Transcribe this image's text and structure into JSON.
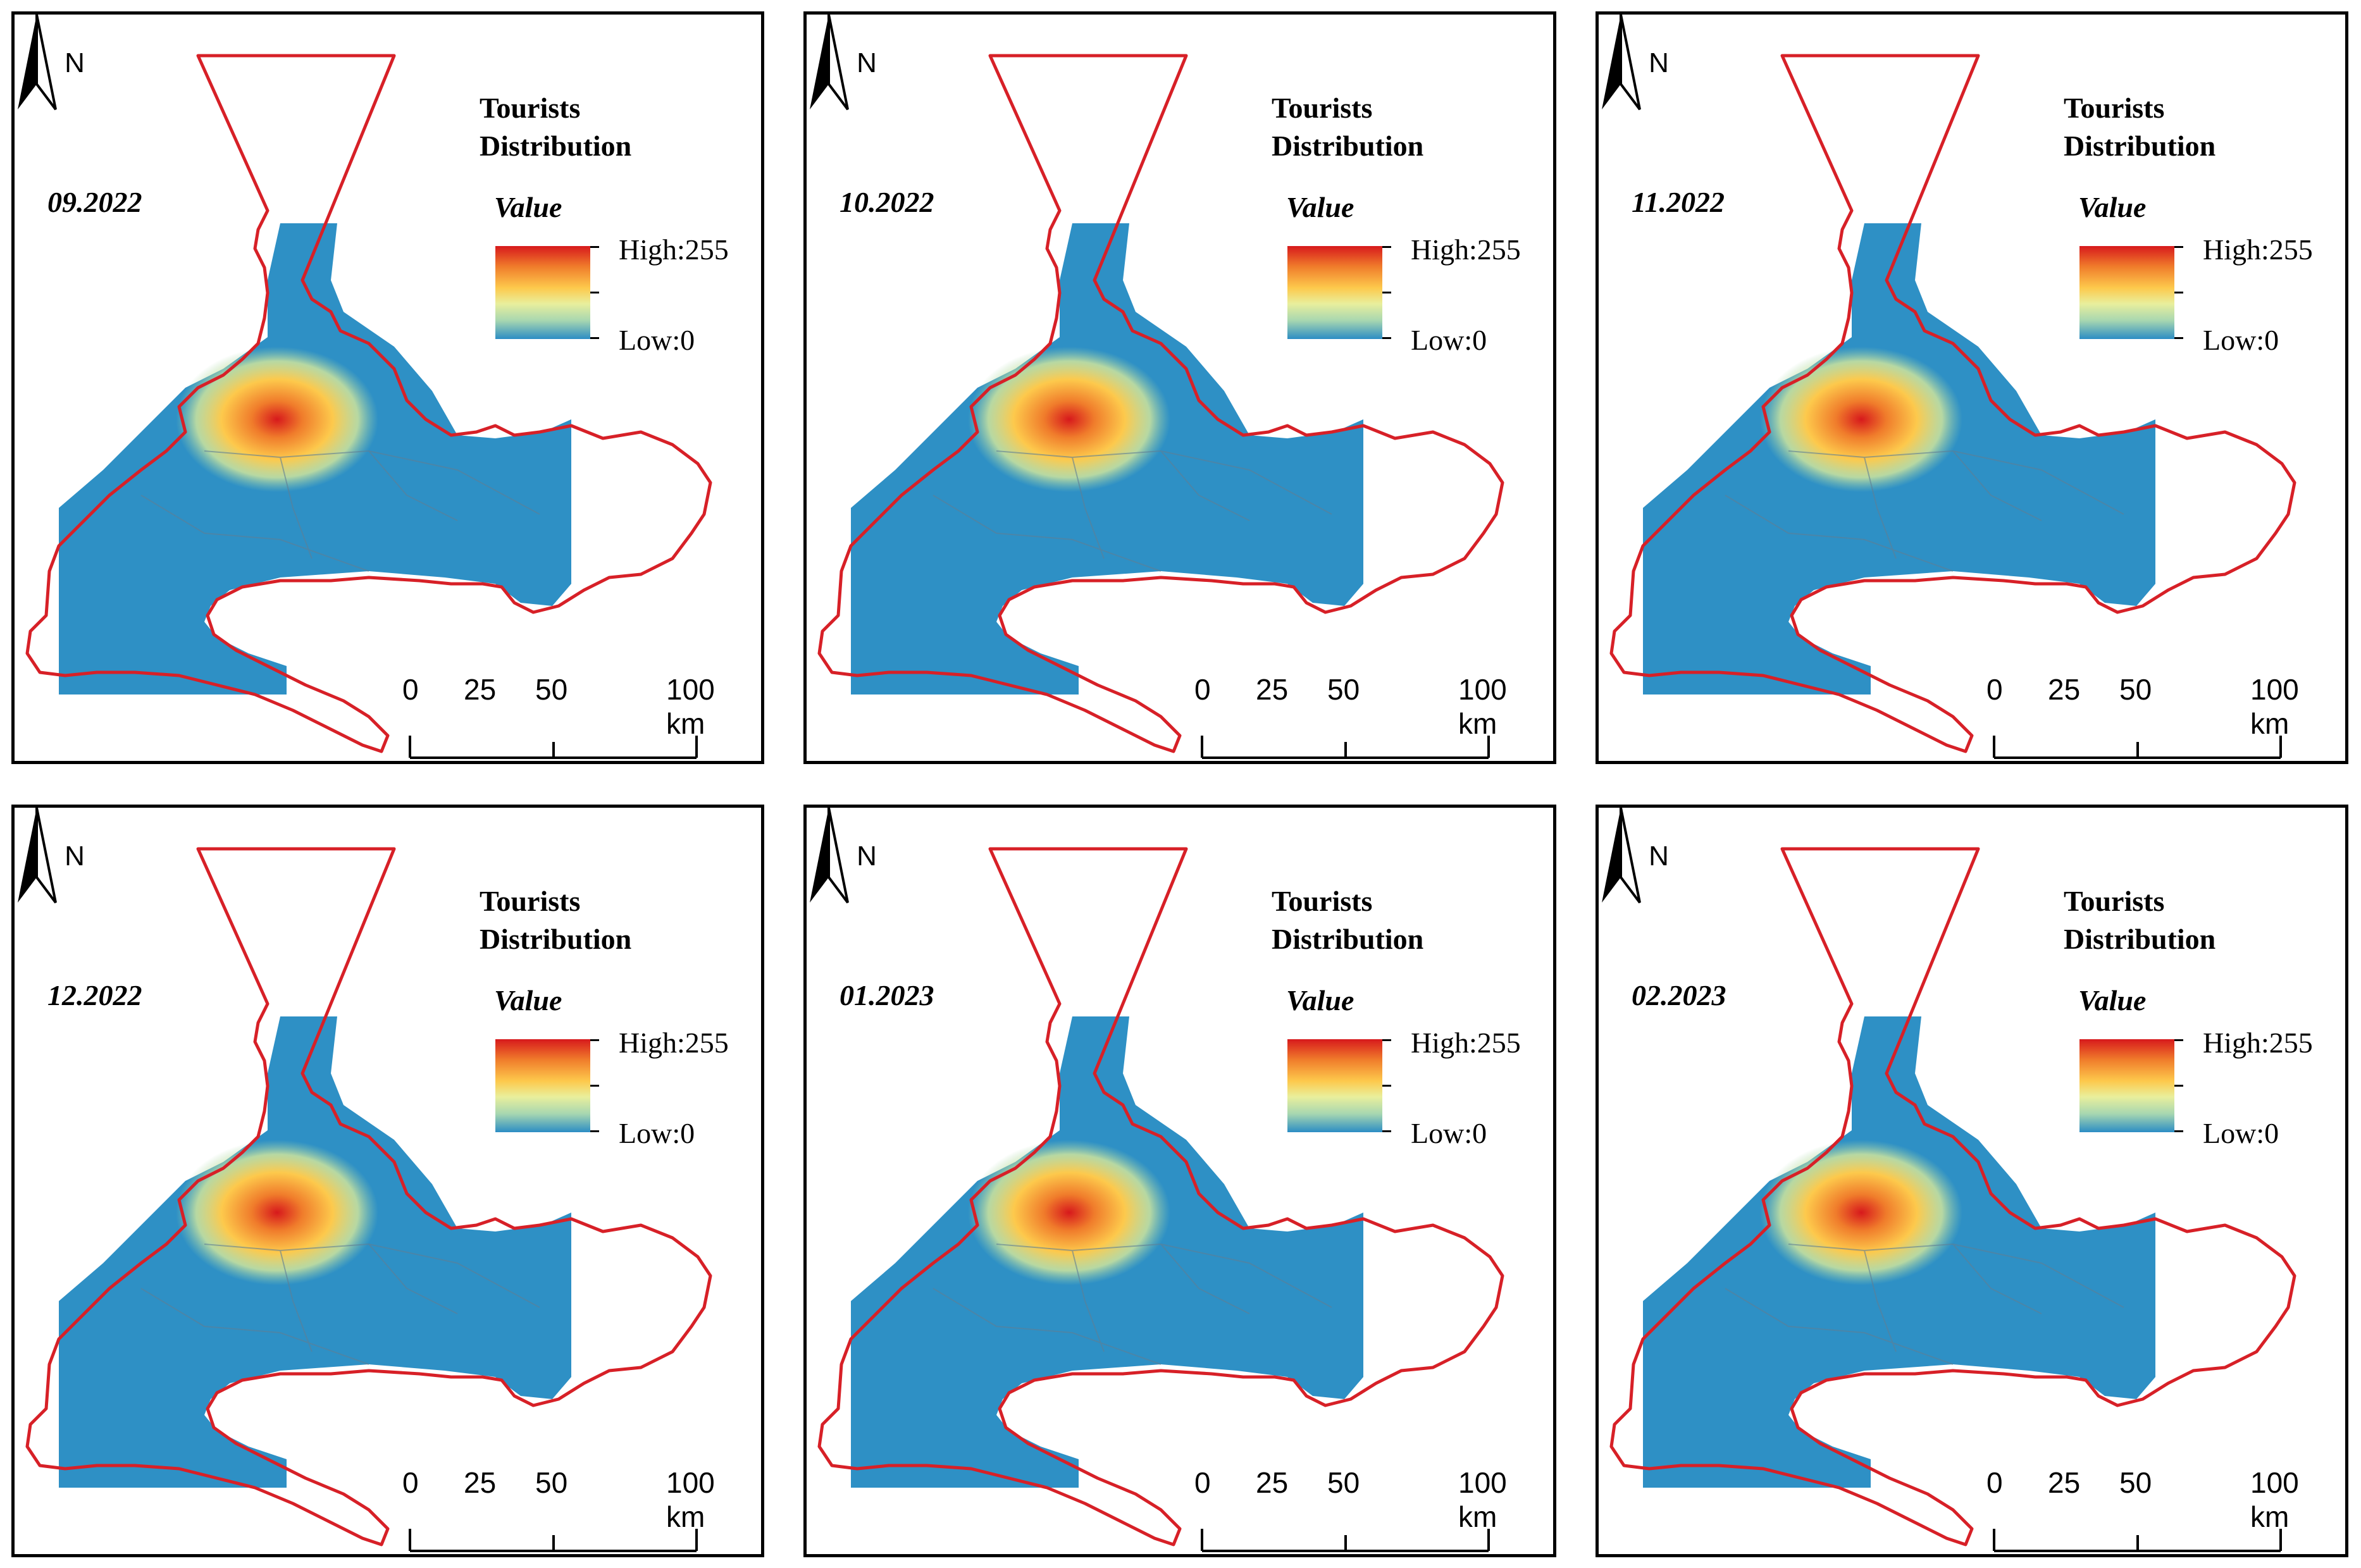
{
  "legend": {
    "title": "Tourists Distribution",
    "value_label": "Value",
    "high_label": "High:255",
    "low_label": "Low:0"
  },
  "north_label": "N",
  "scale_labels": [
    "0",
    "25",
    "50",
    "100 km"
  ],
  "colors": {
    "boundary": "#d72027",
    "fill": "#2e90c5",
    "ramp_high": "#d7191c",
    "ramp_mid": "#fdc94c",
    "ramp_low": "#2c8dc4"
  },
  "panels": [
    {
      "period": "09.2022"
    },
    {
      "period": "10.2022"
    },
    {
      "period": "11.2022"
    },
    {
      "period": "12.2022"
    },
    {
      "period": "01.2023"
    },
    {
      "period": "02.2023"
    }
  ]
}
